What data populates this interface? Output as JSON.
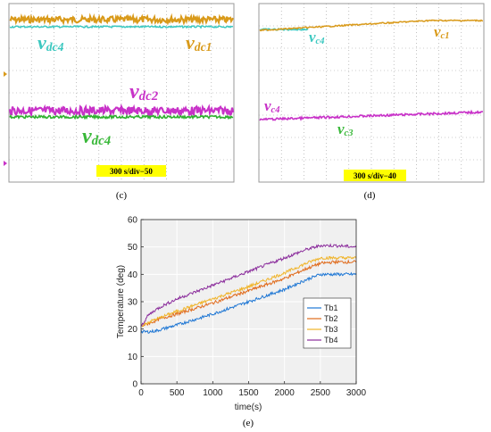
{
  "panel_c": {
    "letter": "(c)",
    "badge": "300 s/div−50",
    "labels": [
      {
        "key": "vdc4_top",
        "base": "v",
        "sub": "dc4",
        "color": "#3cc8c0"
      },
      {
        "key": "vdc1",
        "base": "v",
        "sub": "dc1",
        "color": "#d99a1a"
      },
      {
        "key": "vdc2",
        "base": "v",
        "sub": "dc2",
        "color": "#c832c8"
      },
      {
        "key": "vdc4_bot",
        "base": "v",
        "sub": "dc4",
        "color": "#39b839"
      }
    ]
  },
  "panel_d": {
    "letter": "(d)",
    "badge": "300 s/div−40",
    "labels": [
      {
        "key": "vc4_top",
        "base": "v",
        "sub": "c4",
        "color": "#3cc8c0"
      },
      {
        "key": "vc1",
        "base": "v",
        "sub": "c1",
        "color": "#d99a1a"
      },
      {
        "key": "vc4_bot",
        "base": "v",
        "sub": "c4",
        "color": "#c832c8"
      },
      {
        "key": "vc3",
        "base": "v",
        "sub": "c3",
        "color": "#39b839"
      }
    ]
  },
  "panel_e": {
    "letter": "(e)"
  },
  "colors": {
    "scope_orange": "#d99a1a",
    "scope_cyan": "#3cc8c0",
    "scope_magenta": "#c832c8",
    "scope_green": "#2fb02f",
    "plot_bg": "#f0f0f0",
    "grid": "#ffffff",
    "badge": "#ffff00"
  },
  "chart_data": {
    "type": "line",
    "xlabel": "time(s)",
    "ylabel": "Temperature (deg)",
    "xlim": [
      0,
      3000
    ],
    "ylim": [
      0,
      60
    ],
    "xticks": [
      "0",
      "500",
      "1000",
      "1500",
      "2000",
      "2500",
      "3000"
    ],
    "yticks": [
      "0",
      "10",
      "20",
      "30",
      "40",
      "50",
      "60"
    ],
    "grid": true,
    "legend": "right",
    "x": [
      0,
      100,
      200,
      300,
      500,
      1000,
      1500,
      2000,
      2300,
      2500,
      2700,
      3000
    ],
    "series": [
      {
        "name": "Tb1",
        "color": "#1f77d4",
        "values": [
          19,
          19,
          19.3,
          20,
          21.5,
          25.5,
          30,
          34.5,
          38,
          40,
          40,
          40
        ]
      },
      {
        "name": "Tb2",
        "color": "#e06a1a",
        "values": [
          21,
          22,
          23,
          24,
          25.5,
          29.5,
          34,
          38.5,
          42,
          44,
          44.5,
          44.5
        ]
      },
      {
        "name": "Tb3",
        "color": "#f0b429",
        "values": [
          21,
          22.5,
          23.5,
          24.5,
          26.5,
          31,
          35.5,
          40.5,
          44,
          46,
          46,
          46
        ]
      },
      {
        "name": "Tb4",
        "color": "#8b2d9c",
        "values": [
          21,
          25,
          27,
          28.5,
          31,
          36,
          41,
          46,
          49,
          50.5,
          50.5,
          50
        ]
      }
    ]
  }
}
